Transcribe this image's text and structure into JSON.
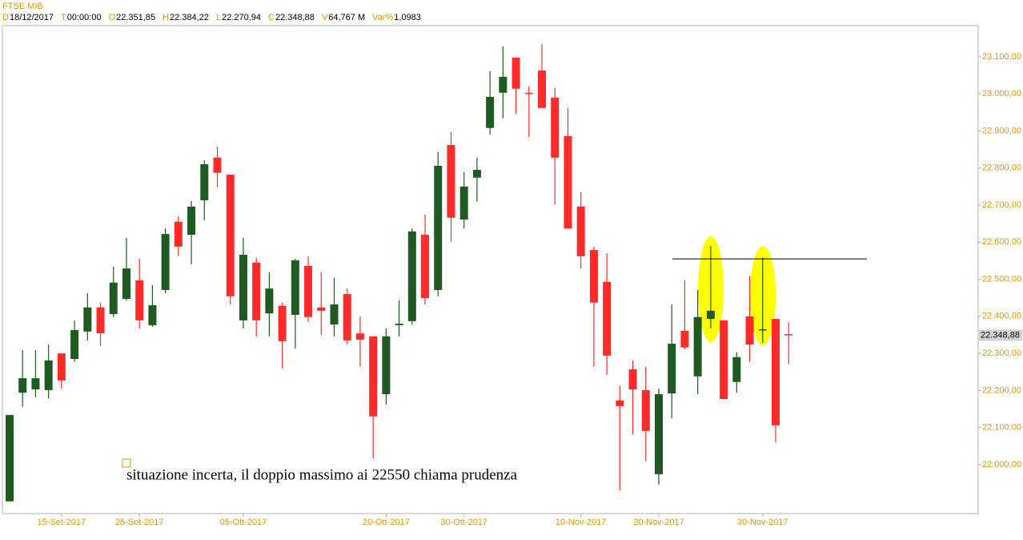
{
  "chart_data": {
    "type": "candlestick",
    "title": "FTSE MIB",
    "header": [
      {
        "key": "D",
        "value": "18/12/2017"
      },
      {
        "key": "T",
        "value": "00:00:00"
      },
      {
        "key": "O",
        "value": "22.351,85"
      },
      {
        "key": "H",
        "value": "22.384,22"
      },
      {
        "key": "L",
        "value": "22.270,94"
      },
      {
        "key": "C",
        "value": "22.348,88"
      },
      {
        "key": "V",
        "value": "64,767 M"
      },
      {
        "key": "Var%",
        "value": "1,0983"
      }
    ],
    "categories": [
      null,
      null,
      null,
      null,
      "15-Set-2017",
      null,
      null,
      null,
      null,
      null,
      "25-Set-2017",
      null,
      null,
      null,
      null,
      null,
      null,
      null,
      "05-Ott-2017",
      null,
      null,
      null,
      null,
      null,
      null,
      null,
      null,
      null,
      null,
      "20-Ott-2017",
      null,
      null,
      null,
      null,
      null,
      "30-Ott-2017",
      null,
      null,
      null,
      null,
      null,
      null,
      null,
      null,
      "10-Nov-2017",
      null,
      null,
      null,
      null,
      null,
      "20-Nov-2017",
      null,
      null,
      null,
      null,
      null,
      null,
      null,
      "30-Nov-2017",
      null,
      null
    ],
    "open": [
      21901,
      22194,
      22203,
      22201,
      22300,
      22285,
      22359,
      22424,
      22406,
      22447,
      22497,
      22376,
      22471,
      22655,
      22620,
      22713,
      22828,
      22782,
      22389,
      22545,
      22408,
      22428,
      22404,
      22536,
      22424,
      22378,
      22460,
      22354,
      22346,
      22190,
      22376,
      22387,
      22620,
      22471,
      22862,
      22661,
      22774,
      22908,
      23003,
      23098,
      23003,
      23063,
      22990,
      22886,
      22696,
      22579,
      22493,
      22173,
      22257,
      22201,
      21974,
      22192,
      22361,
      22238,
      22393,
      22389,
      22223,
      22400,
      22363,
      22393,
      22351.85
    ],
    "high": [
      22134,
      22309,
      22309,
      22324,
      22300,
      22389,
      22462,
      22437,
      22534,
      22612,
      22555,
      22484,
      22637,
      22670,
      22711,
      22821,
      22858,
      22782,
      22612,
      22558,
      22519,
      22437,
      22555,
      22562,
      22519,
      22504,
      22475,
      22400,
      22346,
      22367,
      22443,
      22637,
      22674,
      22843,
      22897,
      22789,
      22828,
      23061,
      23128,
      23098,
      23020,
      23134,
      23016,
      22962,
      22735,
      22588,
      22570,
      22212,
      22281,
      22264,
      22205,
      22432,
      22497,
      22471,
      22590,
      22389,
      22303,
      22508,
      22558,
      22393,
      22384.22
    ],
    "low": [
      21901,
      22156,
      22182,
      22179,
      22205,
      22277,
      22335,
      22320,
      22398,
      22443,
      22367,
      22372,
      22462,
      22562,
      22540,
      22659,
      22748,
      22432,
      22367,
      22346,
      22346,
      22259,
      22313,
      22385,
      22350,
      22346,
      22324,
      22264,
      22017,
      22162,
      22346,
      22378,
      22432,
      22454,
      22601,
      22637,
      22709,
      22890,
      22934,
      22947,
      22884,
      22962,
      22702,
      22637,
      22529,
      22264,
      22242,
      21931,
      22082,
      22009,
      21946,
      22125,
      22311,
      22190,
      22367,
      22177,
      22194,
      22277,
      22328,
      22060,
      22270.94
    ],
    "close": [
      22134,
      22233,
      22233,
      22281,
      22227,
      22363,
      22424,
      22354,
      22491,
      22529,
      22389,
      22430,
      22622,
      22588,
      22696,
      22810,
      22787,
      22454,
      22566,
      22389,
      22475,
      22333,
      22551,
      22398,
      22415,
      22432,
      22335,
      22337,
      22130,
      22346,
      22380,
      22629,
      22449,
      22806,
      22666,
      22750,
      22795,
      22992,
      23046,
      23014,
      23001,
      22962,
      22828,
      22637,
      22562,
      22437,
      22294,
      22158,
      22203,
      22091,
      22190,
      22326,
      22316,
      22398,
      22415,
      22177,
      22290,
      22324,
      22365,
      22106,
      22348.88
    ],
    "up_color": "#1f5a22",
    "down_color": "#ff2b2b",
    "ylim": [
      21868,
      23184
    ],
    "yticks": [
      {
        "value": 22000,
        "label": "22.000,00"
      },
      {
        "value": 22100,
        "label": "22.100,00"
      },
      {
        "value": 22200,
        "label": "22.200,00"
      },
      {
        "value": 22300,
        "label": "22.300,00"
      },
      {
        "value": 22400,
        "label": "22.400,00"
      },
      {
        "value": 22500,
        "label": "22.500,00"
      },
      {
        "value": 22600,
        "label": "22.600,00"
      },
      {
        "value": 22700,
        "label": "22.700,00"
      },
      {
        "value": 22800,
        "label": "22.800,00"
      },
      {
        "value": 22900,
        "label": "22.900,00"
      },
      {
        "value": 23000,
        "label": "23.000,00"
      },
      {
        "value": 23100,
        "label": "23.100,00"
      }
    ],
    "last_price": {
      "value": 22348.88,
      "label": "22.348,88"
    },
    "resistance_level": 22555,
    "annotation": "situazione incerta, il doppio massimo ai 22550 chiama prudenza"
  }
}
